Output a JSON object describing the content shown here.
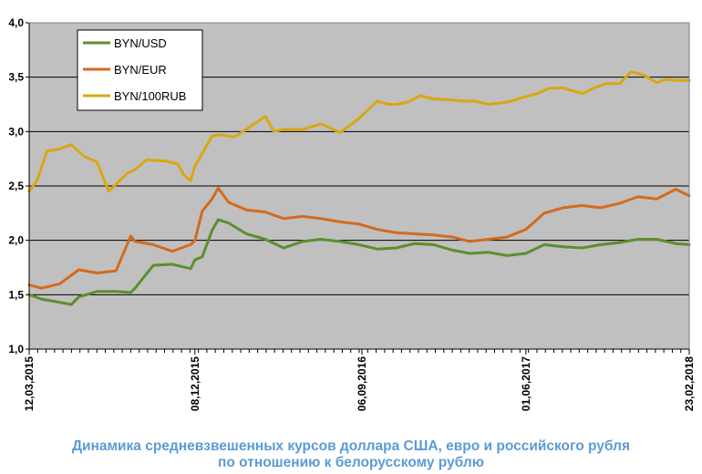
{
  "chart_data": {
    "type": "line",
    "title": "",
    "xlabel": "",
    "ylabel": "",
    "ylim": [
      1.0,
      4.0
    ],
    "yticks": [
      "1,0",
      "1,5",
      "2,0",
      "2,5",
      "3,0",
      "3,5",
      "4,0"
    ],
    "ytick_values": [
      1.0,
      1.5,
      2.0,
      2.5,
      3.0,
      3.5,
      4.0
    ],
    "xlim": [
      "2015-03-12",
      "2018-02-23"
    ],
    "xtick_labels": [
      "12,03,2015",
      "08,12,2015",
      "06,09,2016",
      "01,06,2017",
      "23,02,2018"
    ],
    "xtick_dates": [
      "2015-03-12",
      "2015-12-08",
      "2016-09-06",
      "2017-06-01",
      "2018-02-23"
    ],
    "grid": "horizontal",
    "legend_position": "top-left",
    "plot_background": "#c0c0c0",
    "series": [
      {
        "name": "BYN/USD",
        "color": "#5b8f2e",
        "x": [
          "2015-03-12",
          "2015-04-01",
          "2015-05-01",
          "2015-05-20",
          "2015-06-01",
          "2015-07-01",
          "2015-08-01",
          "2015-08-25",
          "2015-09-01",
          "2015-10-01",
          "2015-11-01",
          "2015-12-01",
          "2015-12-08",
          "2015-12-20",
          "2016-01-05",
          "2016-01-15",
          "2016-02-01",
          "2016-03-01",
          "2016-04-01",
          "2016-05-01",
          "2016-06-01",
          "2016-07-01",
          "2016-08-01",
          "2016-09-01",
          "2016-10-01",
          "2016-11-01",
          "2016-12-01",
          "2017-01-01",
          "2017-02-01",
          "2017-03-01",
          "2017-04-01",
          "2017-05-01",
          "2017-06-01",
          "2017-07-01",
          "2017-08-01",
          "2017-09-01",
          "2017-10-01",
          "2017-11-01",
          "2017-12-01",
          "2018-01-01",
          "2018-02-01",
          "2018-02-23"
        ],
        "y": [
          1.5,
          1.46,
          1.43,
          1.41,
          1.48,
          1.53,
          1.53,
          1.52,
          1.56,
          1.77,
          1.78,
          1.74,
          1.82,
          1.85,
          2.09,
          2.19,
          2.16,
          2.06,
          2.01,
          1.93,
          1.99,
          2.01,
          1.99,
          1.96,
          1.92,
          1.93,
          1.97,
          1.96,
          1.91,
          1.88,
          1.89,
          1.86,
          1.88,
          1.96,
          1.94,
          1.93,
          1.96,
          1.98,
          2.01,
          2.01,
          1.97,
          1.96
        ]
      },
      {
        "name": "BYN/EUR",
        "color": "#d46a1e",
        "x": [
          "2015-03-12",
          "2015-04-01",
          "2015-05-01",
          "2015-06-01",
          "2015-07-01",
          "2015-08-01",
          "2015-08-25",
          "2015-09-01",
          "2015-10-01",
          "2015-11-01",
          "2015-12-01",
          "2015-12-08",
          "2015-12-20",
          "2016-01-05",
          "2016-01-15",
          "2016-02-01",
          "2016-03-01",
          "2016-04-01",
          "2016-05-01",
          "2016-06-01",
          "2016-07-01",
          "2016-08-01",
          "2016-09-01",
          "2016-10-01",
          "2016-11-01",
          "2016-12-01",
          "2017-01-01",
          "2017-02-01",
          "2017-03-01",
          "2017-04-01",
          "2017-05-01",
          "2017-06-01",
          "2017-07-01",
          "2017-08-01",
          "2017-09-01",
          "2017-10-01",
          "2017-11-01",
          "2017-12-01",
          "2018-01-01",
          "2018-02-01",
          "2018-02-23"
        ],
        "y": [
          1.59,
          1.56,
          1.6,
          1.73,
          1.7,
          1.72,
          2.04,
          1.99,
          1.96,
          1.9,
          1.96,
          2.0,
          2.27,
          2.38,
          2.48,
          2.35,
          2.28,
          2.26,
          2.2,
          2.22,
          2.2,
          2.17,
          2.15,
          2.1,
          2.07,
          2.06,
          2.05,
          2.03,
          1.99,
          2.01,
          2.03,
          2.1,
          2.25,
          2.3,
          2.32,
          2.3,
          2.34,
          2.4,
          2.38,
          2.47,
          2.41
        ]
      },
      {
        "name": "BYN/100RUB",
        "color": "#d9a712",
        "x": [
          "2015-03-12",
          "2015-03-25",
          "2015-04-10",
          "2015-05-01",
          "2015-05-20",
          "2015-06-10",
          "2015-07-01",
          "2015-07-20",
          "2015-08-20",
          "2015-09-01",
          "2015-09-20",
          "2015-10-20",
          "2015-11-10",
          "2015-11-20",
          "2015-12-01",
          "2015-12-08",
          "2015-12-20",
          "2016-01-05",
          "2016-01-20",
          "2016-02-10",
          "2016-03-01",
          "2016-04-01",
          "2016-04-15",
          "2016-05-01",
          "2016-06-01",
          "2016-07-01",
          "2016-07-10",
          "2016-08-01",
          "2016-09-01",
          "2016-10-01",
          "2016-10-20",
          "2016-11-01",
          "2016-11-20",
          "2016-12-10",
          "2017-01-01",
          "2017-02-01",
          "2017-02-20",
          "2017-03-10",
          "2017-04-01",
          "2017-05-01",
          "2017-06-01",
          "2017-06-20",
          "2017-07-10",
          "2017-08-01",
          "2017-09-01",
          "2017-09-20",
          "2017-10-10",
          "2017-11-01",
          "2017-11-20",
          "2017-12-10",
          "2018-01-01",
          "2018-01-15",
          "2018-02-01",
          "2018-02-23"
        ],
        "y": [
          2.45,
          2.55,
          2.82,
          2.84,
          2.88,
          2.77,
          2.72,
          2.45,
          2.62,
          2.65,
          2.74,
          2.73,
          2.7,
          2.6,
          2.55,
          2.68,
          2.8,
          2.96,
          2.97,
          2.95,
          3.02,
          3.14,
          3.0,
          3.02,
          3.02,
          3.07,
          3.05,
          2.99,
          3.12,
          3.28,
          3.25,
          3.25,
          3.27,
          3.33,
          3.3,
          3.29,
          3.28,
          3.28,
          3.25,
          3.27,
          3.32,
          3.35,
          3.4,
          3.4,
          3.35,
          3.4,
          3.44,
          3.44,
          3.55,
          3.52,
          3.45,
          3.48,
          3.47,
          3.47
        ]
      }
    ]
  },
  "caption": {
    "line1": "Динамика средневзвешенных курсов доллара США, евро и российского рубля",
    "line2": "по отношению к белорусскому рублю"
  }
}
